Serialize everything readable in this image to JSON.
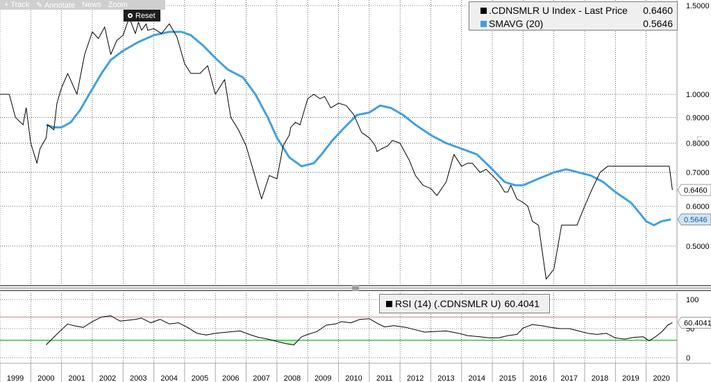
{
  "toolbar": {
    "items": [
      "+ Track",
      "✎ Annotate",
      "News",
      "Zoom"
    ],
    "reset_label": "Reset"
  },
  "legend": {
    "main_series_label": ".CDNSMLR U Index - Last Price",
    "main_series_value": "0.6460",
    "sma_label": "SMAVG (20)",
    "sma_value": "0.5646",
    "rsi_label": "RSI (14) (.CDNSMLR U)",
    "rsi_value": "60.4041"
  },
  "colors": {
    "price": "#000000",
    "sma": "#3fa0e0",
    "rsi_upper_line": "#c58080",
    "rsi_lower_line": "#3cc13c",
    "rsi_over_fill": "#f4c4c4",
    "rsi_under_fill": "#c8f4c8",
    "grid": "#000000",
    "separator": "#333333"
  },
  "vertical_tag": "Lo",
  "chart_data": [
    {
      "type": "line",
      "scale": "log",
      "ylim": [
        0.42,
        1.5
      ],
      "yticks": [
        "1.5000",
        "1.0000",
        "0.9000",
        "0.8000",
        "0.7000",
        "0.6000",
        "0.5000"
      ],
      "ytick_values": [
        1.5,
        1.0,
        0.9,
        0.8,
        0.7,
        0.6,
        0.5
      ],
      "xlim": [
        1999.0,
        2021.0
      ],
      "xticks": [
        "1999",
        "2000",
        "2001",
        "2002",
        "2003",
        "2004",
        "2005",
        "2006",
        "2007",
        "2008",
        "2009",
        "2010",
        "2011",
        "2012",
        "2013",
        "2014",
        "2015",
        "2016",
        "2017",
        "2018",
        "2019",
        "2020"
      ],
      "last_price_tag": "0.6460",
      "sma_tag": "0.5646",
      "series": [
        {
          "name": ".CDNSMLR U Index - Last Price",
          "x": [
            1999.0,
            1999.3,
            1999.5,
            1999.75,
            1999.85,
            2000.0,
            2000.2,
            2000.3,
            2000.5,
            2000.55,
            2000.75,
            2000.85,
            2001.0,
            2001.2,
            2001.5,
            2001.75,
            2002.0,
            2002.2,
            2002.4,
            2002.6,
            2002.8,
            2003.0,
            2003.2,
            2003.4,
            2003.5,
            2003.6,
            2003.75,
            2003.8,
            2004.0,
            2004.25,
            2004.5,
            2004.75,
            2005.0,
            2005.2,
            2005.5,
            2005.75,
            2006.0,
            2006.3,
            2006.5,
            2006.75,
            2007.0,
            2007.25,
            2007.5,
            2007.75,
            2008.0,
            2008.2,
            2008.4,
            2008.45,
            2008.6,
            2008.75,
            2009.0,
            2009.2,
            2009.4,
            2009.55,
            2009.75,
            2010.0,
            2010.25,
            2010.5,
            2010.75,
            2011.0,
            2011.2,
            2011.25,
            2011.4,
            2011.6,
            2011.75,
            2012.0,
            2012.3,
            2012.5,
            2012.75,
            2013.0,
            2013.2,
            2013.5,
            2013.75,
            2014.0,
            2014.2,
            2014.35,
            2014.6,
            2014.8,
            2015.0,
            2015.2,
            2015.4,
            2015.5,
            2015.6,
            2015.8,
            2016.0,
            2016.15,
            2016.3,
            2016.5,
            2016.75,
            2017.0,
            2017.25,
            2017.5,
            2017.75,
            2018.0,
            2018.25,
            2018.5,
            2018.75,
            2019.0,
            2019.2,
            2019.5,
            2019.75,
            2019.9,
            2020.05,
            2020.12,
            2020.2,
            2020.4,
            2020.55,
            2020.75,
            2020.85
          ],
          "values": [
            1.0,
            1.0,
            0.9,
            0.87,
            0.94,
            0.8,
            0.73,
            0.78,
            0.82,
            0.87,
            0.85,
            0.96,
            1.03,
            1.1,
            1.0,
            1.2,
            1.33,
            1.29,
            1.36,
            1.2,
            1.28,
            1.31,
            1.42,
            1.32,
            1.39,
            1.34,
            1.38,
            1.34,
            1.35,
            1.32,
            1.38,
            1.3,
            1.15,
            1.1,
            1.1,
            1.14,
            1.0,
            1.07,
            0.9,
            0.85,
            0.79,
            0.7,
            0.62,
            0.69,
            0.68,
            0.79,
            0.83,
            0.86,
            0.88,
            0.87,
            0.98,
            1.0,
            0.98,
            0.99,
            0.94,
            0.96,
            0.95,
            0.91,
            0.84,
            0.82,
            0.79,
            0.77,
            0.78,
            0.79,
            0.81,
            0.8,
            0.74,
            0.69,
            0.66,
            0.65,
            0.63,
            0.67,
            0.76,
            0.72,
            0.73,
            0.73,
            0.7,
            0.71,
            0.69,
            0.67,
            0.64,
            0.64,
            0.66,
            0.62,
            0.61,
            0.6,
            0.56,
            0.55,
            0.43,
            0.45,
            0.55,
            0.55,
            0.55,
            0.6,
            0.65,
            0.7,
            0.72,
            0.72,
            0.72,
            0.72,
            0.72,
            0.72,
            0.72,
            0.72,
            0.72,
            0.72,
            0.72,
            0.72,
            0.646
          ]
        },
        {
          "name": "SMAVG (20)",
          "x": [
            2000.5,
            2000.75,
            2001.0,
            2001.3,
            2001.6,
            2001.9,
            2002.3,
            2002.6,
            2003.0,
            2003.5,
            2004.0,
            2004.5,
            2004.9,
            2005.2,
            2005.6,
            2006.0,
            2006.4,
            2006.9,
            2007.3,
            2007.7,
            2008.0,
            2008.4,
            2008.8,
            2009.2,
            2009.45,
            2009.8,
            2010.2,
            2010.6,
            2011.0,
            2011.35,
            2011.7,
            2012.1,
            2012.5,
            2013.0,
            2013.5,
            2014.0,
            2014.5,
            2015.0,
            2015.4,
            2015.75,
            2016.0,
            2016.5,
            2017.0,
            2017.4,
            2017.8,
            2018.2,
            2018.6,
            2019.0,
            2019.5,
            2019.8,
            2020.0,
            2020.25,
            2020.5,
            2020.8
          ],
          "values": [
            0.87,
            0.86,
            0.86,
            0.88,
            0.93,
            1.0,
            1.1,
            1.17,
            1.22,
            1.27,
            1.31,
            1.33,
            1.33,
            1.31,
            1.25,
            1.18,
            1.12,
            1.08,
            1.0,
            0.9,
            0.82,
            0.75,
            0.72,
            0.73,
            0.76,
            0.81,
            0.86,
            0.91,
            0.92,
            0.95,
            0.94,
            0.91,
            0.87,
            0.83,
            0.8,
            0.78,
            0.76,
            0.71,
            0.67,
            0.66,
            0.66,
            0.68,
            0.7,
            0.71,
            0.7,
            0.69,
            0.67,
            0.64,
            0.61,
            0.58,
            0.56,
            0.55,
            0.56,
            0.5646
          ]
        }
      ]
    },
    {
      "type": "line",
      "ylim": [
        0,
        100
      ],
      "yticks": [
        "100",
        "50",
        "0"
      ],
      "ytick_values": [
        100,
        50,
        0
      ],
      "overbought": 70,
      "oversold": 30,
      "last_value_tag": "60.4041",
      "series": [
        {
          "name": "RSI (14) (.CDNSMLR U)",
          "x": [
            2000.5,
            2000.8,
            2001.0,
            2001.2,
            2001.4,
            2001.7,
            2002.0,
            2002.3,
            2002.6,
            2002.9,
            2003.1,
            2003.4,
            2003.6,
            2003.9,
            2004.2,
            2004.5,
            2004.8,
            2005.1,
            2005.4,
            2005.7,
            2006.0,
            2006.4,
            2006.8,
            2007.1,
            2007.4,
            2007.7,
            2008.0,
            2008.3,
            2008.55,
            2008.8,
            2009.0,
            2009.3,
            2009.6,
            2009.9,
            2010.1,
            2010.4,
            2010.7,
            2011.0,
            2011.3,
            2011.5,
            2011.8,
            2012.2,
            2012.5,
            2012.8,
            2013.1,
            2013.5,
            2013.9,
            2014.2,
            2014.6,
            2014.9,
            2015.2,
            2015.5,
            2015.8,
            2016.0,
            2016.3,
            2016.6,
            2016.9,
            2017.2,
            2017.5,
            2017.8,
            2018.1,
            2018.4,
            2018.7,
            2019.0,
            2019.3,
            2019.6,
            2019.9,
            2020.1,
            2020.3,
            2020.5,
            2020.7,
            2020.85
          ],
          "values": [
            22,
            38,
            48,
            58,
            55,
            52,
            62,
            70,
            72,
            63,
            64,
            66,
            68,
            60,
            66,
            58,
            60,
            52,
            42,
            39,
            42,
            44,
            46,
            40,
            35,
            32,
            28,
            24,
            22,
            36,
            40,
            45,
            56,
            58,
            62,
            60,
            66,
            67,
            58,
            53,
            55,
            52,
            48,
            44,
            45,
            46,
            42,
            38,
            36,
            34,
            34,
            38,
            40,
            51,
            57,
            55,
            52,
            50,
            50,
            46,
            42,
            40,
            42,
            34,
            32,
            35,
            36,
            29,
            36,
            44,
            56,
            60.4041
          ]
        }
      ]
    }
  ]
}
